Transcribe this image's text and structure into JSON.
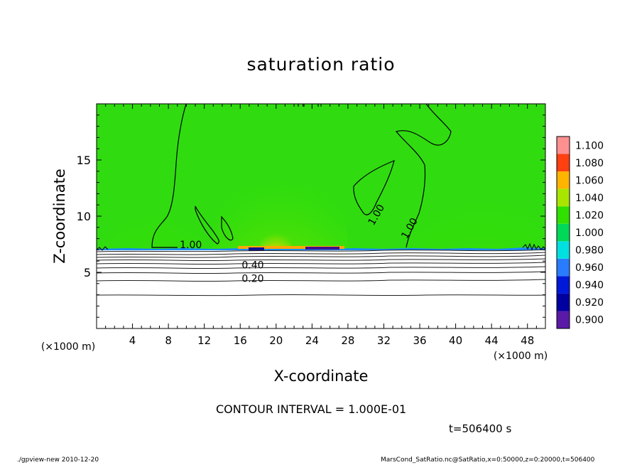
{
  "chart_data": {
    "type": "heatmap",
    "title": "saturation ratio",
    "xlabel": "X-coordinate",
    "ylabel": "Z-coordinate",
    "x_unit": "(×1000 m)",
    "xlim": [
      0,
      50
    ],
    "ylim": [
      0,
      20
    ],
    "x_ticks": [
      4,
      8,
      12,
      16,
      20,
      24,
      28,
      32,
      36,
      40,
      44,
      48
    ],
    "y_ticks": [
      5,
      10,
      15
    ],
    "colorbar": {
      "levels": [
        0.9,
        0.92,
        0.94,
        0.96,
        0.98,
        1.0,
        1.02,
        1.04,
        1.06,
        1.08,
        1.1
      ],
      "labels": [
        "0.900",
        "0.920",
        "0.940",
        "0.960",
        "0.980",
        "1.000",
        "1.020",
        "1.040",
        "1.060",
        "1.080",
        "1.100"
      ],
      "colors": [
        "#5a1aa8",
        "#0000a0",
        "#0018d8",
        "#2a7cff",
        "#00e0e0",
        "#00d858",
        "#30e000",
        "#a8e600",
        "#ffb400",
        "#ff4010",
        "#ff9090"
      ]
    },
    "contour_interval": 0.1,
    "contour_labels": [
      {
        "text": "1.00",
        "x": 10.5,
        "z": 7.4
      },
      {
        "text": "1.00",
        "x": 31.2,
        "z": 10.1
      },
      {
        "text": "1.00",
        "x": 34.9,
        "z": 8.9
      },
      {
        "text": "0.40",
        "x": 17.4,
        "z": 5.6
      },
      {
        "text": "0.20",
        "x": 17.4,
        "z": 4.4
      }
    ],
    "annotations": {
      "contour_interval_text": "CONTOUR INTERVAL = 1.000E-01",
      "time_text": "t=506400 s"
    },
    "grid": false,
    "legend_placement": "right"
  },
  "footer": {
    "left": "./gpview-new  2010-12-20",
    "right": "MarsCond_SatRatio.nc@SatRatio,x=0:50000,z=0:20000,t=506400"
  }
}
